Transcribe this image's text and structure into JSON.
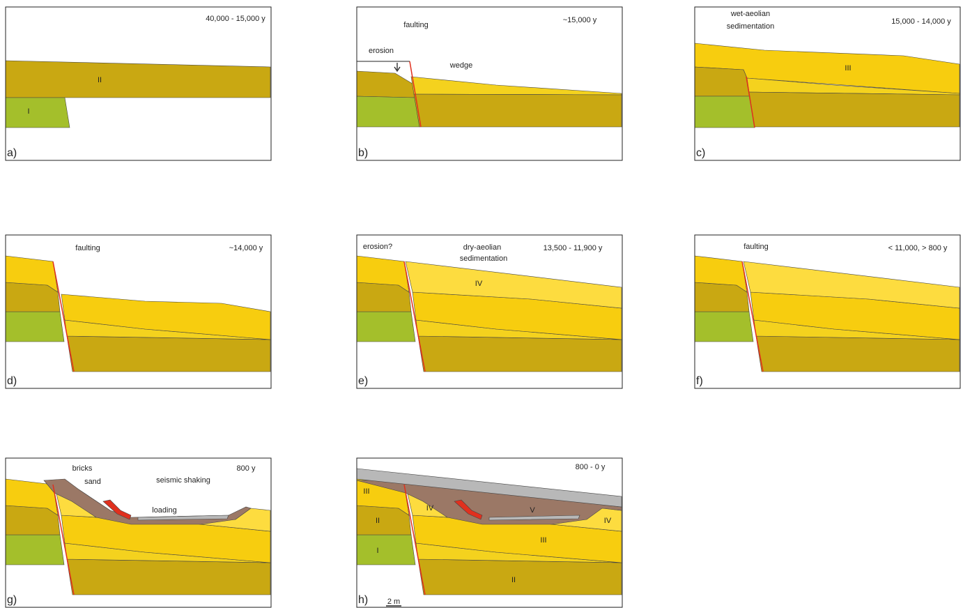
{
  "panels": [
    {
      "label": "a)",
      "annotations": [
        "40,000 - 15,000 y",
        "II",
        "I"
      ]
    },
    {
      "label": "b)",
      "annotations": [
        "faulting",
        "~15,000 y",
        "erosion",
        "wedge"
      ]
    },
    {
      "label": "c)",
      "annotations": [
        "wet-aeolian",
        "sedimentation",
        "15,000 - 14,000 y",
        "III"
      ]
    },
    {
      "label": "d)",
      "annotations": [
        "faulting",
        "~14,000 y"
      ]
    },
    {
      "label": "e)",
      "annotations": [
        "erosion?",
        "dry-aeolian",
        "sedimentation",
        "13,500 - 11,900 y",
        "IV"
      ]
    },
    {
      "label": "f)",
      "annotations": [
        "faulting",
        "< 11,000,  > 800  y"
      ]
    },
    {
      "label": "g)",
      "annotations": [
        "bricks",
        "sand",
        "seismic shaking",
        "loading",
        "800 y"
      ]
    },
    {
      "label": "h)",
      "annotations": [
        "800 - 0 y",
        "III",
        "II",
        "I",
        "IV",
        "V",
        "IV",
        "III",
        "II",
        "2 m"
      ]
    }
  ]
}
